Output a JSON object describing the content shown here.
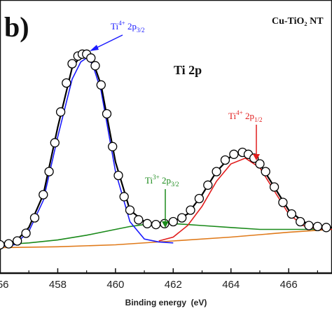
{
  "panel_label": "b)",
  "sample_label": "Cu-TiO₂ NT",
  "chart_data": {
    "type": "line",
    "title": "Ti 2p",
    "xlabel": "Binding energy  (eV)",
    "ylabel": "",
    "xlim": [
      456,
      467.5
    ],
    "ylim": [
      0,
      1
    ],
    "x_ticks": [
      456,
      458,
      460,
      462,
      464,
      466
    ],
    "x_tick_labels": [
      "456",
      "458",
      "460",
      "462",
      "464",
      "466"
    ],
    "grid": false,
    "annotations": [
      {
        "name": "ti4-2p32",
        "base": "Ti",
        "sup": "4+",
        "mid": " 2p",
        "sub": "3/2",
        "color": "#1a1aff"
      },
      {
        "name": "ti4-2p12",
        "base": "Ti",
        "sup": "4+",
        "mid": " 2p",
        "sub": "1/2",
        "color": "#e11d1d"
      },
      {
        "name": "ti3-2p32",
        "base": "Ti",
        "sup": "3+",
        "mid": " 2p",
        "sub": "3/2",
        "color": "#1a8a1a"
      }
    ],
    "series": [
      {
        "role": "experimental",
        "marker": "open-circle",
        "color": "#000000",
        "x": [
          456.0,
          456.3,
          456.6,
          456.9,
          457.2,
          457.5,
          457.7,
          457.9,
          458.1,
          458.3,
          458.5,
          458.7,
          458.85,
          459.0,
          459.15,
          459.3,
          459.5,
          459.7,
          459.9,
          460.1,
          460.3,
          460.5,
          460.8,
          461.1,
          461.4,
          461.7,
          462.0,
          462.3,
          462.6,
          462.9,
          463.2,
          463.5,
          463.8,
          464.1,
          464.4,
          464.6,
          464.8,
          465.0,
          465.2,
          465.5,
          465.8,
          466.1,
          466.4,
          466.7,
          467.0,
          467.3
        ],
        "y": [
          0.02,
          0.025,
          0.04,
          0.08,
          0.16,
          0.28,
          0.4,
          0.55,
          0.71,
          0.86,
          0.96,
          1.0,
          1.01,
          1.01,
          0.99,
          0.95,
          0.85,
          0.7,
          0.53,
          0.38,
          0.27,
          0.2,
          0.15,
          0.13,
          0.125,
          0.13,
          0.14,
          0.16,
          0.2,
          0.26,
          0.33,
          0.4,
          0.46,
          0.49,
          0.5,
          0.49,
          0.47,
          0.44,
          0.4,
          0.32,
          0.24,
          0.18,
          0.14,
          0.12,
          0.115,
          0.11
        ]
      },
      {
        "role": "envelope",
        "color": "#000000",
        "x": [
          456.0,
          456.5,
          457.0,
          457.5,
          458.0,
          458.5,
          458.8,
          459.0,
          459.2,
          459.5,
          460.0,
          460.5,
          461.0,
          461.5,
          462.0,
          462.5,
          463.0,
          463.5,
          464.0,
          464.5,
          465.0,
          465.5,
          466.0,
          466.5,
          467.0,
          467.5
        ],
        "y": [
          0.02,
          0.03,
          0.11,
          0.28,
          0.63,
          0.94,
          1.0,
          1.01,
          0.98,
          0.85,
          0.45,
          0.2,
          0.14,
          0.125,
          0.14,
          0.18,
          0.28,
          0.4,
          0.48,
          0.5,
          0.44,
          0.32,
          0.2,
          0.14,
          0.115,
          0.11
        ]
      },
      {
        "role": "ti4-2p32-fit",
        "color": "#1a1aff",
        "x": [
          456.0,
          456.5,
          457.0,
          457.5,
          458.0,
          458.5,
          458.8,
          459.0,
          459.2,
          459.5,
          460.0,
          460.5,
          461.0,
          461.5,
          462.0
        ],
        "y": [
          0.01,
          0.02,
          0.09,
          0.25,
          0.58,
          0.88,
          0.97,
          0.99,
          0.96,
          0.82,
          0.4,
          0.14,
          0.05,
          0.035,
          0.03
        ]
      },
      {
        "role": "ti4-2p12-fit",
        "color": "#e11d1d",
        "x": [
          461.5,
          462.0,
          462.5,
          463.0,
          463.5,
          464.0,
          464.5,
          465.0,
          465.5,
          466.0,
          466.5,
          467.0,
          467.5
        ],
        "y": [
          0.04,
          0.06,
          0.12,
          0.22,
          0.35,
          0.44,
          0.47,
          0.42,
          0.3,
          0.18,
          0.12,
          0.1,
          0.1
        ]
      },
      {
        "role": "ti3-2p32-fit",
        "color": "#1a8a1a",
        "x": [
          456.0,
          457.0,
          458.0,
          459.0,
          460.0,
          460.5,
          461.0,
          461.5,
          462.0,
          462.5,
          463.0,
          464.0,
          465.0,
          466.0,
          467.0,
          467.5
        ],
        "y": [
          0.02,
          0.03,
          0.045,
          0.07,
          0.1,
          0.115,
          0.125,
          0.13,
          0.13,
          0.125,
          0.12,
          0.11,
          0.1,
          0.1,
          0.1,
          0.1
        ]
      },
      {
        "role": "background",
        "color": "#e07a1a",
        "x": [
          456.0,
          458.0,
          460.0,
          462.0,
          464.0,
          466.0,
          467.5
        ],
        "y": [
          0.005,
          0.01,
          0.02,
          0.04,
          0.06,
          0.085,
          0.1
        ]
      }
    ]
  }
}
